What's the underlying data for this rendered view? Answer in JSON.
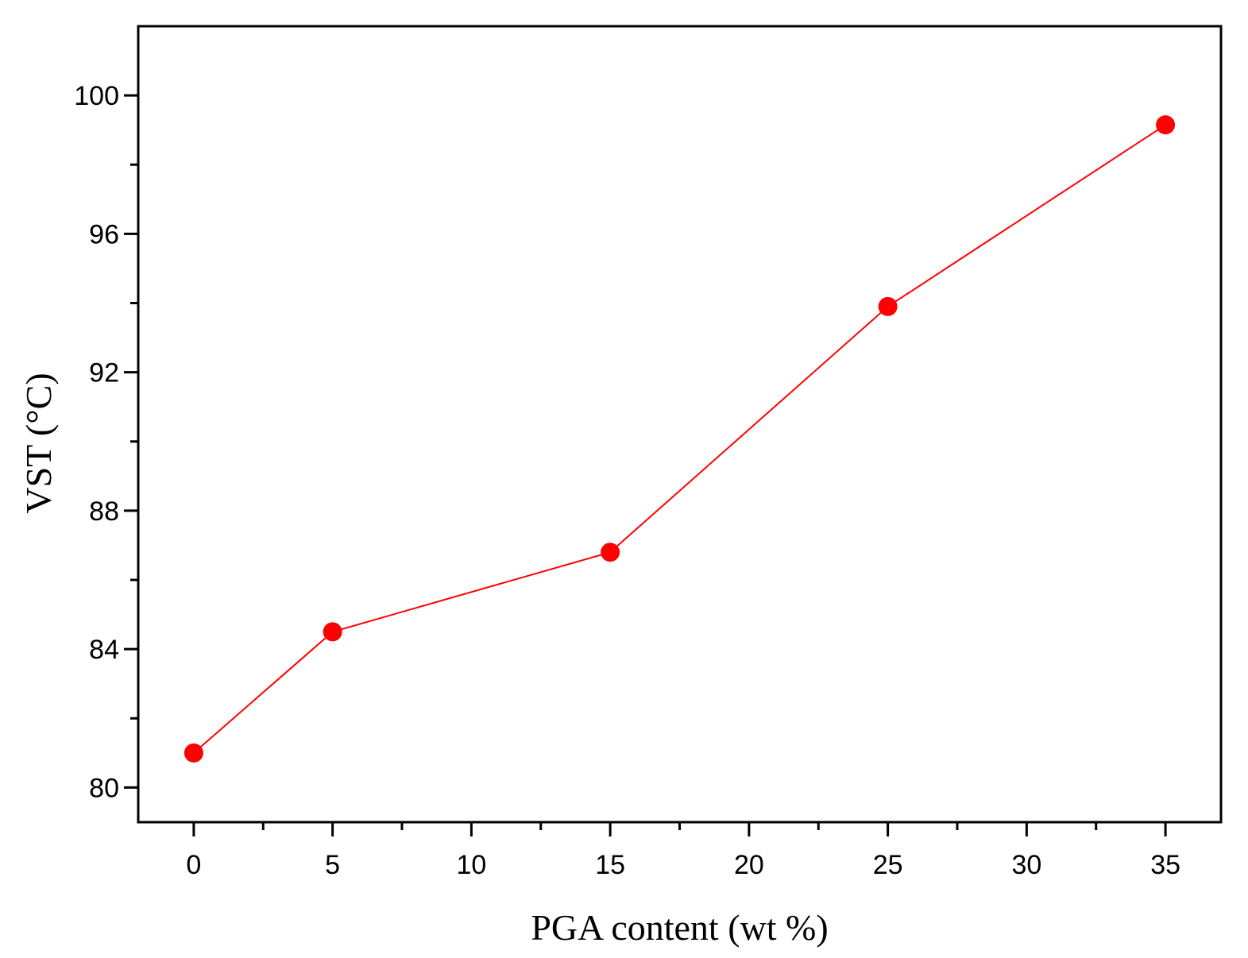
{
  "chart_data": {
    "type": "line",
    "title": "",
    "xlabel": "PGA content (wt %)",
    "ylabel": "VST (°C)",
    "xlim": [
      -2,
      37
    ],
    "ylim": [
      79,
      102
    ],
    "x_ticks_major": [
      0,
      5,
      10,
      15,
      20,
      25,
      30,
      35
    ],
    "x_tick_labels": [
      "0",
      "5",
      "10",
      "15",
      "20",
      "25",
      "30",
      "35"
    ],
    "x_ticks_minor": [
      2.5,
      7.5,
      12.5,
      17.5,
      22.5,
      27.5,
      32.5
    ],
    "y_ticks_major": [
      80,
      84,
      88,
      92,
      96,
      100
    ],
    "y_tick_labels": [
      "80",
      "84",
      "88",
      "92",
      "96",
      "100"
    ],
    "y_ticks_minor": [
      82,
      86,
      90,
      94,
      98
    ],
    "grid": false,
    "legend": "none",
    "series": [
      {
        "color": "#ff0000",
        "marker": "circle",
        "x": [
          0,
          5,
          15,
          25,
          35
        ],
        "y": [
          81.0,
          84.5,
          86.8,
          93.9,
          99.15
        ]
      }
    ]
  }
}
